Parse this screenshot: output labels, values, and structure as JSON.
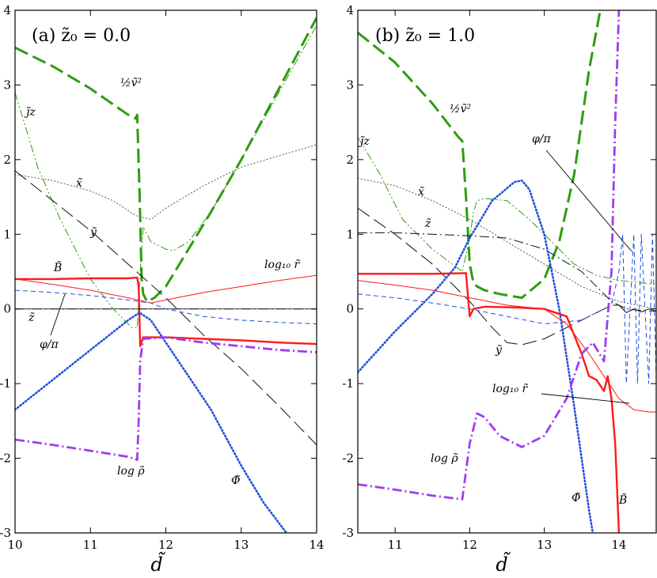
{
  "figure": {
    "x_label": "d̃"
  },
  "colors": {
    "green": "#2e9b12",
    "red": "#ff1a1a",
    "purple": "#a03cf0",
    "blue": "#1f4fe0",
    "black": "#111111",
    "gray": "#555555"
  },
  "chart_data": [
    {
      "type": "line",
      "title": "(a)  z̃₀ = 0.0",
      "xlabel": "d̃",
      "ylabel": "",
      "xlim": [
        10,
        14
      ],
      "ylim": [
        -3,
        4
      ],
      "x_ticks": [
        "10",
        "11",
        "12",
        "13",
        "14"
      ],
      "y_ticks": [
        "-3",
        "-2",
        "-1",
        "0",
        "1",
        "2",
        "3",
        "4"
      ],
      "zero_line": true,
      "series": [
        {
          "name": "½ṽ²",
          "label": "½ṽ²",
          "color_key": "green",
          "style": "long-dash",
          "width": 3,
          "x": [
            10,
            10.5,
            11,
            11.5,
            11.6,
            11.62,
            11.65,
            11.68,
            11.7,
            11.75,
            11.85,
            12,
            12.3,
            12.6,
            13,
            13.5,
            14
          ],
          "y": [
            3.5,
            3.25,
            2.95,
            2.6,
            2.55,
            2.6,
            1.6,
            0.4,
            0.2,
            0.1,
            0.15,
            0.3,
            0.8,
            1.3,
            2.0,
            2.95,
            3.9
          ]
        },
        {
          "name": "j̃z",
          "label": "j̃z",
          "color_key": "green",
          "style": "dash-dot-dot",
          "width": 1,
          "x": [
            10,
            10.3,
            10.6,
            11,
            11.3,
            11.55,
            11.62,
            11.66,
            11.7,
            11.8,
            12,
            12.1,
            12.3,
            12.6,
            13,
            13.5,
            14
          ],
          "y": [
            2.9,
            1.9,
            1.2,
            0.4,
            0.0,
            -0.25,
            -0.25,
            0.5,
            1.1,
            0.9,
            0.8,
            0.78,
            0.9,
            1.3,
            2.0,
            2.9,
            3.8
          ]
        },
        {
          "name": "x̃",
          "label": "x̃",
          "color_key": "gray",
          "style": "dotted",
          "width": 1,
          "x": [
            10,
            10.5,
            11,
            11.3,
            11.6,
            11.8,
            12,
            12.5,
            13,
            13.5,
            14
          ],
          "y": [
            1.8,
            1.72,
            1.58,
            1.45,
            1.25,
            1.2,
            1.35,
            1.65,
            1.9,
            2.05,
            2.2
          ]
        },
        {
          "name": "ỹ",
          "label": "ỹ",
          "color_key": "black",
          "style": "long-dash",
          "width": 1,
          "x": [
            10,
            11,
            11.5,
            12,
            12.5,
            13,
            13.5,
            14
          ],
          "y": [
            1.85,
            1.05,
            0.6,
            0.15,
            -0.35,
            -0.8,
            -1.3,
            -1.82
          ]
        },
        {
          "name": "B̃",
          "label": "B̃",
          "color_key": "red",
          "style": "solid",
          "width": 2.4,
          "x": [
            10,
            10.5,
            11,
            11.5,
            11.62,
            11.64,
            11.66,
            11.7,
            12,
            12.5,
            13,
            13.5,
            14
          ],
          "y": [
            0.4,
            0.4,
            0.41,
            0.41,
            0.42,
            0.3,
            -0.5,
            -0.38,
            -0.38,
            -0.4,
            -0.42,
            -0.45,
            -0.47
          ]
        },
        {
          "name": "log₁₀ r̃",
          "label": "log₁₀ r̃",
          "color_key": "red",
          "style": "solid",
          "width": 1,
          "x": [
            10,
            10.5,
            11,
            11.5,
            11.8,
            12,
            12.5,
            13,
            13.5,
            14
          ],
          "y": [
            0.4,
            0.33,
            0.25,
            0.15,
            0.08,
            0.12,
            0.22,
            0.3,
            0.38,
            0.45
          ]
        },
        {
          "name": "z̃",
          "label": "z̃",
          "color_key": "black",
          "style": "dash-dot",
          "width": 1,
          "x": [
            10,
            14
          ],
          "y": [
            0.0,
            0.0
          ]
        },
        {
          "name": "φ/π",
          "label": "φ/π",
          "color_key": "blue",
          "style": "dashed",
          "width": 1,
          "x": [
            10,
            10.5,
            11,
            11.5,
            11.8,
            12,
            12.5,
            13,
            13.5,
            14
          ],
          "y": [
            0.25,
            0.22,
            0.18,
            0.12,
            0.08,
            0.0,
            -0.1,
            -0.15,
            -0.18,
            -0.2
          ]
        },
        {
          "name": "Φ̃",
          "label": "Φ̃",
          "color_key": "blue",
          "style": "dotted",
          "width": 2.6,
          "x": [
            10,
            10.5,
            11,
            11.5,
            11.65,
            11.8,
            12,
            12.3,
            12.6,
            13,
            13.3,
            13.6
          ],
          "y": [
            -1.35,
            -0.95,
            -0.55,
            -0.15,
            -0.05,
            -0.15,
            -0.45,
            -0.9,
            -1.35,
            -2.1,
            -2.6,
            -3.0
          ]
        },
        {
          "name": "log ρ̃",
          "label": "log ρ̃",
          "color_key": "purple",
          "style": "dash-dot",
          "width": 2.8,
          "x": [
            10,
            10.5,
            11,
            11.5,
            11.62,
            11.64,
            11.66,
            11.7,
            12,
            12.5,
            13,
            13.5,
            14
          ],
          "y": [
            -1.75,
            -1.82,
            -1.9,
            -1.98,
            -2.02,
            -1.5,
            -0.7,
            -0.4,
            -0.38,
            -0.45,
            -0.5,
            -0.55,
            -0.58
          ]
        }
      ],
      "annotations": [
        "½ṽ²",
        "j̃z",
        "x̃",
        "ỹ",
        "B̃",
        "log₁₀ r̃",
        "z̃",
        "φ/π",
        "log ρ̃",
        "Φ̃"
      ]
    },
    {
      "type": "line",
      "title": "(b)  z̃₀ = 1.0",
      "xlabel": "d̃",
      "ylabel": "",
      "xlim": [
        10.5,
        14.5
      ],
      "ylim": [
        -3,
        4
      ],
      "x_ticks": [
        "11",
        "12",
        "13",
        "14"
      ],
      "y_ticks": [
        "-3",
        "-2",
        "-1",
        "0",
        "1",
        "2",
        "3",
        "4"
      ],
      "zero_line": false,
      "series": [
        {
          "name": "½ṽ²",
          "label": "½ṽ²",
          "color_key": "green",
          "style": "long-dash",
          "width": 3,
          "x": [
            10.5,
            11,
            11.5,
            11.85,
            11.9,
            11.95,
            12.0,
            12.05,
            12.1,
            12.2,
            12.4,
            12.7,
            13.0,
            13.2,
            13.4,
            13.6,
            13.75
          ],
          "y": [
            3.7,
            3.3,
            2.75,
            2.3,
            2.25,
            1.5,
            0.6,
            0.35,
            0.3,
            0.25,
            0.2,
            0.15,
            0.4,
            0.9,
            1.8,
            3.2,
            4.0
          ]
        },
        {
          "name": "j̃z",
          "label": "j̃z",
          "color_key": "green",
          "style": "dash-dot-dot",
          "width": 1,
          "x": [
            10.5,
            10.8,
            11.1,
            11.5,
            11.9,
            12.0,
            12.05,
            12.1,
            12.2,
            12.5,
            12.8,
            13.1,
            13.4,
            13.7,
            14.0,
            14.3,
            14.5
          ],
          "y": [
            2.3,
            1.8,
            1.2,
            0.8,
            0.5,
            0.95,
            1.3,
            1.45,
            1.48,
            1.45,
            1.2,
            0.9,
            0.6,
            0.45,
            0.38,
            0.35,
            0.33
          ]
        },
        {
          "name": "x̃",
          "label": "x̃",
          "color_key": "gray",
          "style": "dotted",
          "width": 1,
          "x": [
            10.5,
            11,
            11.5,
            12,
            12.5,
            13,
            13.5,
            14,
            14.5
          ],
          "y": [
            1.75,
            1.65,
            1.45,
            1.2,
            0.9,
            0.6,
            0.3,
            0.1,
            0.0
          ]
        },
        {
          "name": "z̃",
          "label": "z̃",
          "color_key": "black",
          "style": "dash-dot",
          "width": 1,
          "x": [
            10.5,
            11,
            11.5,
            12,
            12.5,
            13,
            13.5,
            13.9,
            14.1,
            14.3,
            14.5
          ],
          "y": [
            1.02,
            1.02,
            1.0,
            0.98,
            0.95,
            0.8,
            0.5,
            0.1,
            0.0,
            -0.02,
            -0.03
          ]
        },
        {
          "name": "ỹ",
          "label": "ỹ",
          "color_key": "black",
          "style": "long-dash",
          "width": 1,
          "x": [
            10.5,
            11,
            11.5,
            12,
            12.3,
            12.5,
            12.7,
            13.0,
            13.3,
            13.6,
            13.9,
            14.0
          ],
          "y": [
            1.35,
            1.0,
            0.6,
            0.1,
            -0.25,
            -0.45,
            -0.48,
            -0.4,
            -0.25,
            -0.1,
            0.05,
            0.05
          ]
        },
        {
          "name": "ỹ tail",
          "label": "",
          "color_key": "black",
          "style": "solid",
          "width": 1,
          "x": [
            14.0,
            14.1,
            14.2,
            14.3,
            14.4,
            14.5
          ],
          "y": [
            0.05,
            -0.05,
            0.0,
            -0.04,
            0.0,
            -0.03
          ]
        },
        {
          "name": "φ/π",
          "label": "φ/π",
          "color_key": "blue",
          "style": "dashed",
          "width": 1,
          "x": [
            10.5,
            11,
            11.5,
            12,
            12.5,
            13,
            13.5,
            13.9,
            14.0,
            14.05,
            14.1,
            14.2,
            14.25,
            14.3,
            14.4,
            14.45,
            14.5
          ],
          "y": [
            0.2,
            0.15,
            0.08,
            0.0,
            -0.1,
            -0.2,
            -0.15,
            0.05,
            0.5,
            1.0,
            -1.0,
            1.0,
            -1.0,
            1.0,
            -1.0,
            1.0,
            -0.9
          ]
        },
        {
          "name": "Φ̃",
          "label": "Φ̃",
          "color_key": "blue",
          "style": "dotted",
          "width": 2.6,
          "x": [
            10.5,
            11,
            11.5,
            11.8,
            12,
            12.3,
            12.6,
            12.7,
            12.8,
            13.0,
            13.2,
            13.4,
            13.6,
            13.65
          ],
          "y": [
            -0.85,
            -0.3,
            0.2,
            0.55,
            0.95,
            1.45,
            1.7,
            1.72,
            1.6,
            1.0,
            0.0,
            -1.3,
            -2.7,
            -3.0
          ]
        },
        {
          "name": "B̃",
          "label": "B̃",
          "color_key": "red",
          "style": "solid",
          "width": 2.4,
          "x": [
            10.5,
            11,
            11.5,
            11.95,
            12.0,
            12.05,
            12.2,
            12.6,
            13.0,
            13.3,
            13.5,
            13.6,
            13.7,
            13.8,
            13.85,
            13.9,
            13.95,
            14.0
          ],
          "y": [
            0.47,
            0.47,
            0.47,
            0.48,
            -0.1,
            0.0,
            0.03,
            0.02,
            0.0,
            -0.1,
            -0.6,
            -0.9,
            -0.95,
            -1.1,
            -0.9,
            -1.2,
            -1.8,
            -3.0
          ]
        },
        {
          "name": "log₁₀ r̃",
          "label": "log₁₀ r̃",
          "color_key": "red",
          "style": "solid",
          "width": 1,
          "x": [
            10.5,
            11,
            11.5,
            12,
            12.5,
            13,
            13.3,
            13.6,
            13.8,
            14.0,
            14.2,
            14.4,
            14.5
          ],
          "y": [
            0.38,
            0.32,
            0.25,
            0.15,
            0.05,
            0.0,
            -0.2,
            -0.6,
            -0.9,
            -1.2,
            -1.35,
            -1.38,
            -1.38
          ]
        },
        {
          "name": "log ρ̃",
          "label": "log ρ̃",
          "color_key": "purple",
          "style": "dash-dot",
          "width": 2.8,
          "x": [
            10.5,
            11,
            11.5,
            11.9,
            12.0,
            12.1,
            12.2,
            12.4,
            12.7,
            13.0,
            13.3,
            13.5,
            13.65,
            13.8,
            13.9,
            13.95,
            14.0
          ],
          "y": [
            -2.35,
            -2.42,
            -2.5,
            -2.55,
            -1.8,
            -1.4,
            -1.45,
            -1.7,
            -1.85,
            -1.7,
            -1.2,
            -0.6,
            -0.45,
            -0.7,
            0.5,
            2.5,
            4.0
          ]
        }
      ],
      "annotations": [
        "½ṽ²",
        "j̃z",
        "x̃",
        "z̃",
        "φ/π",
        "ỹ",
        "log₁₀ r̃",
        "log ρ̃",
        "Φ̃",
        "B̃"
      ]
    }
  ]
}
